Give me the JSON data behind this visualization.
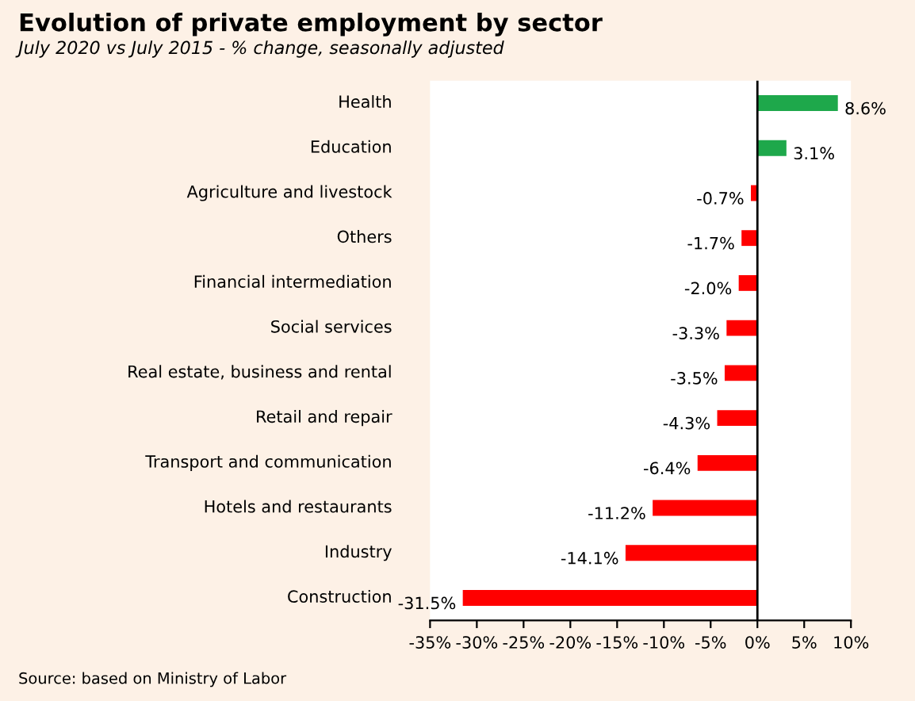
{
  "chart_data": {
    "type": "bar",
    "orientation": "horizontal",
    "title": "Evolution of private employment by sector",
    "subtitle": "July 2020 vs July 2015 - % change, seasonally adjusted",
    "categories": [
      "Health",
      "Education",
      "Agriculture and livestock",
      "Others",
      "Financial intermediation",
      "Social services",
      "Real estate, business and rental",
      "Retail and repair",
      "Transport and communication",
      "Hotels and restaurants",
      "Industry",
      "Construction"
    ],
    "values": [
      8.6,
      3.1,
      -0.7,
      -1.7,
      -2.0,
      -3.3,
      -3.5,
      -4.3,
      -6.4,
      -11.2,
      -14.1,
      -31.5
    ],
    "colors": [
      "#1ea84b",
      "#1ea84b",
      "#ff0000",
      "#ff0000",
      "#ff0000",
      "#ff0000",
      "#ff0000",
      "#ff0000",
      "#ff0000",
      "#ff0000",
      "#ff0000",
      "#ff0000"
    ],
    "value_labels": [
      "8.6%",
      "3.1%",
      "-0.7%",
      "-1.7%",
      "-2.0%",
      "-3.3%",
      "-3.5%",
      "-4.3%",
      "-6.4%",
      "-11.2%",
      "-14.1%",
      "-31.5%"
    ],
    "xlim": [
      -35,
      10
    ],
    "xticks": [
      {
        "value": -35,
        "label": "-35%"
      },
      {
        "value": -30,
        "label": "-30%"
      },
      {
        "value": -25,
        "label": "-25%"
      },
      {
        "value": -20,
        "label": "-20%"
      },
      {
        "value": -15,
        "label": "-15%"
      },
      {
        "value": -10,
        "label": "-10%"
      },
      {
        "value": -5,
        "label": "-5%"
      },
      {
        "value": 0,
        "label": "0%"
      },
      {
        "value": 5,
        "label": "5%"
      },
      {
        "value": 10,
        "label": "10%"
      }
    ],
    "grid": false,
    "legend": false,
    "ref_lines": [
      {
        "axis": "x",
        "value": 0,
        "color": "#000000",
        "line_style": "solid"
      }
    ],
    "annotations": [
      "Source: based on Ministry of Labor"
    ]
  }
}
